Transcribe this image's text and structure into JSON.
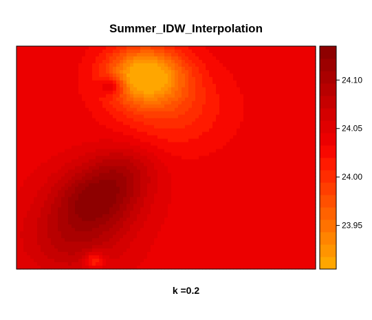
{
  "chart_data": {
    "type": "heatmap",
    "title": "Summer_IDW_Interpolation",
    "xlabel": "k =0.2",
    "ylabel": "",
    "colorbar": {
      "ticks": [
        23.95,
        24.0,
        24.05,
        24.1
      ],
      "tick_labels": [
        "23.95",
        "24.00",
        "24.05",
        "24.10"
      ],
      "range": [
        23.905,
        24.135
      ],
      "colors": [
        "#ffa600",
        "#ff9400",
        "#ff8400",
        "#ff7200",
        "#ff6200",
        "#ff5000",
        "#ff3e00",
        "#ff2c00",
        "#ff1a00",
        "#f80800",
        "#ec0000",
        "#e00000",
        "#d40000",
        "#c60000",
        "#b80000",
        "#aa0000",
        "#9c0000",
        "#8e0000"
      ]
    },
    "surface": {
      "background": 24.04,
      "features": [
        {
          "kind": "hot-spot",
          "x": 0.43,
          "y": 0.87,
          "value": 23.9,
          "spread": 0.09
        },
        {
          "kind": "hot-spot",
          "x": 0.52,
          "y": 0.72,
          "value": 24.0,
          "spread": 0.13
        },
        {
          "kind": "cool-spot",
          "x": 0.27,
          "y": 0.32,
          "value": 24.12,
          "spread": 0.1
        },
        {
          "kind": "cool-spot",
          "x": 0.19,
          "y": 0.14,
          "value": 24.09,
          "spread": 0.12
        },
        {
          "kind": "cool-spot",
          "x": 0.36,
          "y": 0.45,
          "value": 24.08,
          "spread": 0.08
        },
        {
          "kind": "cool-spot",
          "x": 0.32,
          "y": 0.82,
          "value": 24.1,
          "spread": 0.03
        },
        {
          "kind": "hot-spot",
          "x": 0.26,
          "y": 0.04,
          "value": 23.98,
          "spread": 0.025
        }
      ]
    }
  }
}
